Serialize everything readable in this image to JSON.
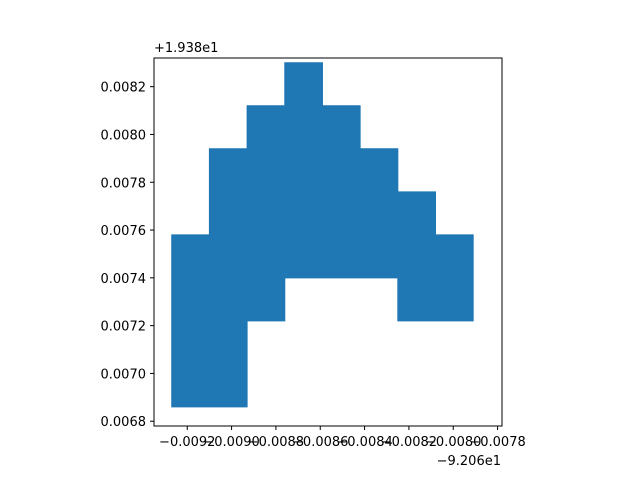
{
  "chart_data": {
    "type": "area",
    "title": "",
    "xlabel": "",
    "ylabel": "",
    "x_offset_label": "−9.206e1",
    "y_offset_label": "+1.938e1",
    "x_offset": -92.06,
    "y_offset": 19.38,
    "xlim": [
      -0.00935,
      -0.00778
    ],
    "ylim": [
      0.00678,
      0.00832
    ],
    "x_ticks": [
      -0.0092,
      -0.009,
      -0.0088,
      -0.0086,
      -0.0084,
      -0.0082,
      -0.008,
      -0.0078
    ],
    "x_tick_labels": [
      "−0.0092",
      "−0.0090",
      "−0.0088",
      "−0.0086",
      "−0.0084",
      "−0.0082",
      "−0.0080",
      "−0.0078"
    ],
    "y_ticks": [
      0.0068,
      0.007,
      0.0072,
      0.0074,
      0.0076,
      0.0078,
      0.008,
      0.0082
    ],
    "y_tick_labels": [
      "0.0068",
      "0.0070",
      "0.0072",
      "0.0074",
      "0.0076",
      "0.0078",
      "0.0080",
      "0.0082"
    ],
    "grid": false,
    "fill_color": "#1f77b4",
    "polygon": [
      [
        -0.00927,
        0.00686
      ],
      [
        -0.00893,
        0.00686
      ],
      [
        -0.00893,
        0.00722
      ],
      [
        -0.00876,
        0.00722
      ],
      [
        -0.00876,
        0.0074
      ],
      [
        -0.00825,
        0.0074
      ],
      [
        -0.00825,
        0.00722
      ],
      [
        -0.00791,
        0.00722
      ],
      [
        -0.00791,
        0.00758
      ],
      [
        -0.00808,
        0.00758
      ],
      [
        -0.00808,
        0.00776
      ],
      [
        -0.00825,
        0.00776
      ],
      [
        -0.00825,
        0.00794
      ],
      [
        -0.00842,
        0.00794
      ],
      [
        -0.00842,
        0.00812
      ],
      [
        -0.00859,
        0.00812
      ],
      [
        -0.00859,
        0.0083
      ],
      [
        -0.00876,
        0.0083
      ],
      [
        -0.00876,
        0.00812
      ],
      [
        -0.00893,
        0.00812
      ],
      [
        -0.00893,
        0.00794
      ],
      [
        -0.0091,
        0.00794
      ],
      [
        -0.0091,
        0.00758
      ],
      [
        -0.00927,
        0.00758
      ]
    ]
  }
}
